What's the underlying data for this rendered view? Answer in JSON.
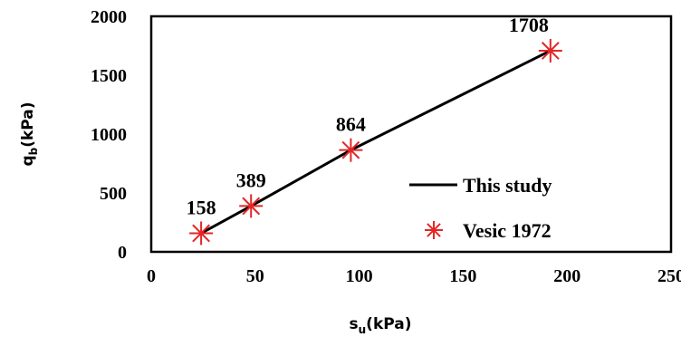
{
  "colors": {
    "line": "#000000",
    "marker": "#e32626",
    "frame": "#000000"
  },
  "chart_data": {
    "type": "scatter",
    "title": "",
    "xlim": [
      0,
      250
    ],
    "ylim": [
      0,
      2000
    ],
    "xticks": [
      "0",
      "50",
      "100",
      "150",
      "200",
      "250"
    ],
    "yticks": [
      "0",
      "500",
      "1000",
      "1500",
      "2000"
    ],
    "xlabel": {
      "main": "s",
      "sub": "u",
      "tail": "(kPa)"
    },
    "ylabel": {
      "main": "q",
      "sub": "b",
      "tail": "(kPa)"
    },
    "grid": false,
    "legend_position": "bottom-right",
    "series": [
      {
        "name": "This study",
        "kind": "line",
        "x": [
          24,
          48,
          96,
          192
        ],
        "y": [
          158,
          389,
          864,
          1708
        ]
      },
      {
        "name": "Vesic 1972",
        "kind": "marker",
        "marker": "asterisk",
        "x": [
          24,
          48,
          96,
          192
        ],
        "y": [
          158,
          389,
          864,
          1708
        ],
        "labels": [
          "158",
          "389",
          "864",
          "1708"
        ]
      }
    ]
  }
}
